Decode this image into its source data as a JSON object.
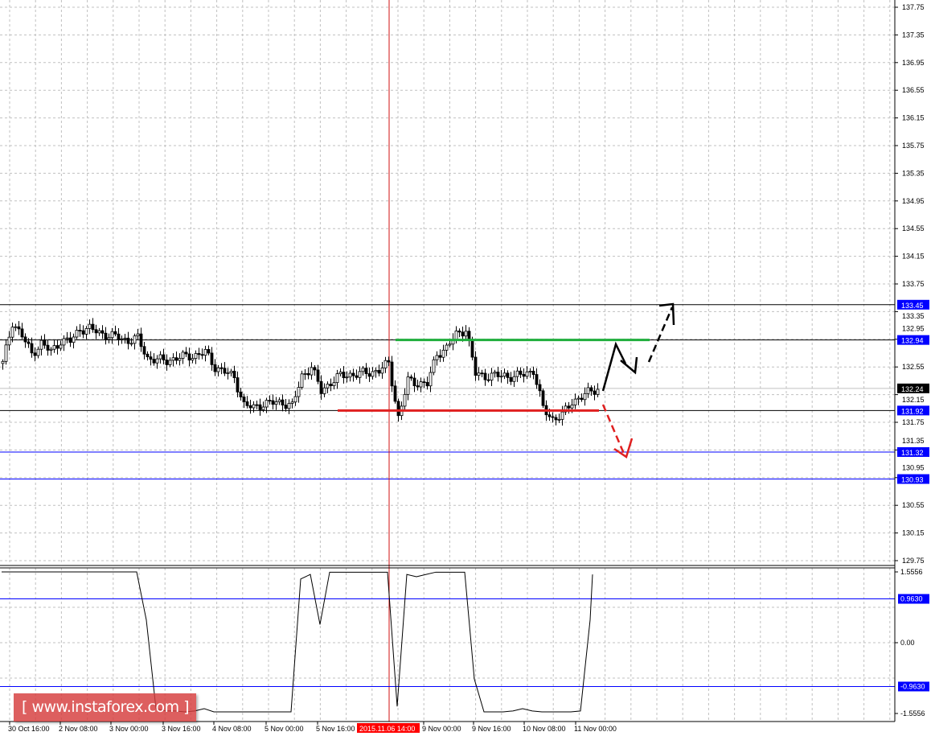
{
  "chart_data": [
    {
      "type": "candlestick",
      "price_axis": {
        "ylim": [
          129.75,
          137.75
        ],
        "ticks": [
          "137.75",
          "137.35",
          "136.95",
          "136.55",
          "136.15",
          "135.75",
          "135.35",
          "134.95",
          "134.55",
          "134.15",
          "133.75",
          "133.35",
          "132.95",
          "132.55",
          "132.15",
          "131.75",
          "131.35",
          "130.95",
          "130.55",
          "130.15",
          "129.75"
        ]
      },
      "time_axis": {
        "ticks": [
          "30 Oct 16:00",
          "2 Nov 08:00",
          "3 Nov 00:00",
          "3 Nov 16:00",
          "4 Nov 08:00",
          "5 Nov 00:00",
          "5 Nov 16:00",
          "9 Nov 00:00",
          "9 Nov 16:00",
          "10 Nov 08:00",
          "11 Nov 00:00"
        ],
        "crosshair_label": "2015.11.06 14:00"
      },
      "grid": true,
      "closes": [
        132.6,
        133.2,
        133.0,
        132.74,
        132.89,
        132.77,
        132.93,
        132.92,
        133.1,
        133.1,
        133.05,
        133.0,
        132.98,
        132.93,
        132.96,
        132.68,
        132.65,
        132.64,
        132.68,
        132.7,
        132.72,
        132.76,
        132.55,
        132.48,
        132.4,
        132.0,
        131.96,
        132.02,
        132.03,
        132.04,
        131.98,
        132.42,
        132.55,
        132.2,
        132.33,
        132.42,
        132.44,
        132.45,
        132.47,
        132.5,
        132.6,
        131.82,
        132.35,
        132.32,
        132.3,
        132.74,
        132.82,
        133.02,
        133.1,
        132.45,
        132.42,
        132.42,
        132.43,
        132.4,
        132.45,
        132.5,
        131.95,
        131.8,
        131.85,
        132.05,
        132.12,
        132.2,
        132.26
      ],
      "current_price": "132.24",
      "levels": [
        {
          "value": "133.45",
          "color": "#0000ff",
          "line": "#000000"
        },
        {
          "value": "132.94",
          "color": "#0000ff",
          "line": "#000000"
        },
        {
          "value": "131.92",
          "color": "#0000ff",
          "line": "#000000"
        },
        {
          "value": "131.32",
          "color": "#0000ff",
          "line": "#0000ff"
        },
        {
          "value": "130.93",
          "color": "#0000ff",
          "line": "#0000ff"
        }
      ],
      "resistance": {
        "value": 132.94,
        "color": "#1fae3c"
      },
      "support": {
        "value": 131.92,
        "color": "#e02020"
      },
      "forecast_up_target": 133.45,
      "forecast_down_target": 131.32
    },
    {
      "type": "line",
      "ylim": [
        -1.5556,
        1.5556
      ],
      "ticks": [
        "1.5556",
        "0.00",
        "-1.5556"
      ],
      "levels": [
        "0.9630",
        "-0.9630"
      ],
      "values": [
        1.5556,
        1.5556,
        1.5556,
        1.5556,
        1.5556,
        1.5556,
        1.5556,
        1.5556,
        1.5556,
        1.5556,
        1.5556,
        1.5556,
        1.5556,
        1.5556,
        1.5556,
        0.5,
        -1.45,
        -1.5,
        -1.5,
        -1.52,
        -1.5,
        -1.45,
        -1.52,
        -1.52,
        -1.52,
        -1.52,
        -1.52,
        -1.52,
        -1.52,
        -1.52,
        -1.52,
        1.4,
        1.5,
        0.4,
        1.55,
        1.55,
        1.55,
        1.55,
        1.55,
        1.55,
        1.55,
        -1.4,
        1.5,
        1.45,
        1.5,
        1.55,
        1.55,
        1.55,
        1.55,
        -0.8,
        -1.52,
        -1.52,
        -1.52,
        -1.5,
        -1.45,
        -1.5,
        -1.52,
        -1.52,
        -1.52,
        -1.52,
        -1.5,
        0.5,
        1.5
      ]
    }
  ],
  "watermark": "[ www.instaforex.com ]"
}
